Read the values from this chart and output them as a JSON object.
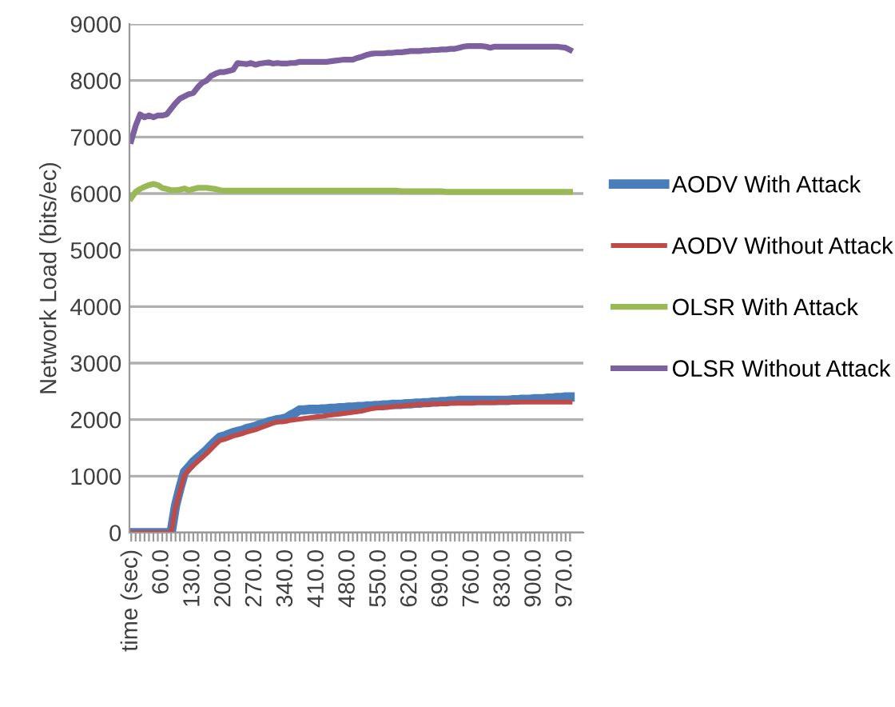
{
  "chart_data": {
    "type": "line",
    "ylabel": "Network Load (bits/ec)",
    "categories": [
      "time (sec)",
      null,
      null,
      null,
      null,
      null,
      null,
      "60.0",
      null,
      null,
      null,
      null,
      null,
      null,
      "130.0",
      null,
      null,
      null,
      null,
      null,
      null,
      "200.0",
      null,
      null,
      null,
      null,
      null,
      null,
      "270.0",
      null,
      null,
      null,
      null,
      null,
      null,
      "340.0",
      null,
      null,
      null,
      null,
      null,
      null,
      "410.0",
      null,
      null,
      null,
      null,
      null,
      null,
      "480.0",
      null,
      null,
      null,
      null,
      null,
      null,
      "550.0",
      null,
      null,
      null,
      null,
      null,
      null,
      "620.0",
      null,
      null,
      null,
      null,
      null,
      null,
      "690.0",
      null,
      null,
      null,
      null,
      null,
      null,
      "760.0",
      null,
      null,
      null,
      null,
      null,
      null,
      "830.0",
      null,
      null,
      null,
      null,
      null,
      null,
      "900.0",
      null,
      null,
      null,
      null,
      null,
      null,
      "970.0",
      null
    ],
    "series": [
      {
        "name": "AODV With Attack",
        "color": "#4a7ebb",
        "values": [
          0,
          0,
          0,
          0,
          0,
          0,
          0,
          0,
          0,
          0,
          480,
          790,
          1070,
          1160,
          1250,
          1320,
          1390,
          1460,
          1540,
          1620,
          1690,
          1710,
          1740,
          1770,
          1790,
          1810,
          1840,
          1860,
          1880,
          1910,
          1930,
          1960,
          1980,
          2000,
          2010,
          2030,
          2080,
          2120,
          2170,
          2170,
          2180,
          2180,
          2180,
          2190,
          2190,
          2200,
          2200,
          2210,
          2210,
          2220,
          2220,
          2230,
          2230,
          2240,
          2240,
          2250,
          2250,
          2260,
          2260,
          2270,
          2270,
          2270,
          2280,
          2280,
          2290,
          2290,
          2300,
          2300,
          2310,
          2310,
          2320,
          2320,
          2330,
          2330,
          2340,
          2340,
          2340,
          2340,
          2340,
          2340,
          2340,
          2340,
          2340,
          2340,
          2340,
          2340,
          2350,
          2350,
          2360,
          2360,
          2360,
          2370,
          2370,
          2370,
          2380,
          2380,
          2390,
          2390,
          2400,
          2400
        ]
      },
      {
        "name": "AODV Without Attack",
        "color": "#be4b48",
        "values": [
          0,
          0,
          0,
          0,
          0,
          0,
          0,
          0,
          0,
          0,
          450,
          740,
          1020,
          1110,
          1190,
          1260,
          1330,
          1400,
          1480,
          1560,
          1630,
          1650,
          1680,
          1710,
          1730,
          1750,
          1780,
          1800,
          1820,
          1850,
          1880,
          1910,
          1940,
          1960,
          1960,
          1970,
          1990,
          2000,
          2010,
          2020,
          2030,
          2040,
          2050,
          2060,
          2070,
          2080,
          2090,
          2100,
          2110,
          2120,
          2130,
          2140,
          2150,
          2170,
          2190,
          2200,
          2210,
          2210,
          2220,
          2230,
          2240,
          2240,
          2250,
          2260,
          2260,
          2270,
          2270,
          2270,
          2280,
          2280,
          2280,
          2280,
          2290,
          2290,
          2290,
          2290,
          2290,
          2290,
          2300,
          2300,
          2300,
          2300,
          2300,
          2310,
          2310,
          2310,
          2310,
          2310,
          2310,
          2310,
          2310,
          2310,
          2310,
          2310,
          2310,
          2310,
          2310,
          2310,
          2310,
          2310
        ]
      },
      {
        "name": "OLSR With Attack",
        "color": "#98b954",
        "values": [
          5920,
          6030,
          6080,
          6120,
          6150,
          6170,
          6150,
          6100,
          6080,
          6060,
          6060,
          6070,
          6090,
          6060,
          6080,
          6100,
          6100,
          6100,
          6090,
          6080,
          6060,
          6050,
          6050,
          6050,
          6050,
          6050,
          6050,
          6050,
          6050,
          6050,
          6050,
          6050,
          6050,
          6050,
          6050,
          6050,
          6050,
          6050,
          6050,
          6050,
          6050,
          6050,
          6050,
          6050,
          6050,
          6050,
          6050,
          6050,
          6050,
          6050,
          6050,
          6050,
          6050,
          6050,
          6050,
          6050,
          6050,
          6050,
          6050,
          6050,
          6050,
          6040,
          6040,
          6040,
          6040,
          6040,
          6040,
          6040,
          6040,
          6040,
          6040,
          6030,
          6030,
          6030,
          6030,
          6030,
          6030,
          6030,
          6030,
          6030,
          6030,
          6030,
          6030,
          6030,
          6030,
          6030,
          6030,
          6030,
          6030,
          6030,
          6030,
          6030,
          6030,
          6030,
          6030,
          6030,
          6030,
          6030,
          6030,
          6030
        ]
      },
      {
        "name": "OLSR Without Attack",
        "color": "#7d60a0",
        "values": [
          6930,
          7200,
          7400,
          7350,
          7380,
          7350,
          7380,
          7380,
          7400,
          7500,
          7600,
          7680,
          7720,
          7760,
          7780,
          7880,
          7960,
          8000,
          8080,
          8120,
          8150,
          8150,
          8170,
          8190,
          8310,
          8300,
          8290,
          8310,
          8280,
          8300,
          8310,
          8320,
          8300,
          8310,
          8300,
          8300,
          8310,
          8310,
          8330,
          8330,
          8330,
          8330,
          8330,
          8330,
          8330,
          8340,
          8350,
          8360,
          8370,
          8370,
          8370,
          8400,
          8420,
          8450,
          8470,
          8480,
          8480,
          8480,
          8490,
          8490,
          8500,
          8500,
          8510,
          8520,
          8520,
          8520,
          8530,
          8530,
          8540,
          8540,
          8550,
          8550,
          8560,
          8560,
          8580,
          8600,
          8610,
          8610,
          8610,
          8610,
          8600,
          8580,
          8600,
          8600,
          8600,
          8600,
          8600,
          8600,
          8600,
          8600,
          8600,
          8600,
          8600,
          8600,
          8600,
          8600,
          8600,
          8590,
          8580,
          8540
        ]
      }
    ],
    "ylim": [
      0,
      9000
    ],
    "yticks": [
      0,
      1000,
      2000,
      3000,
      4000,
      5000,
      6000,
      7000,
      8000,
      9000
    ],
    "grid": "y",
    "legend": "right",
    "marker": "none",
    "line_style": "solid"
  }
}
